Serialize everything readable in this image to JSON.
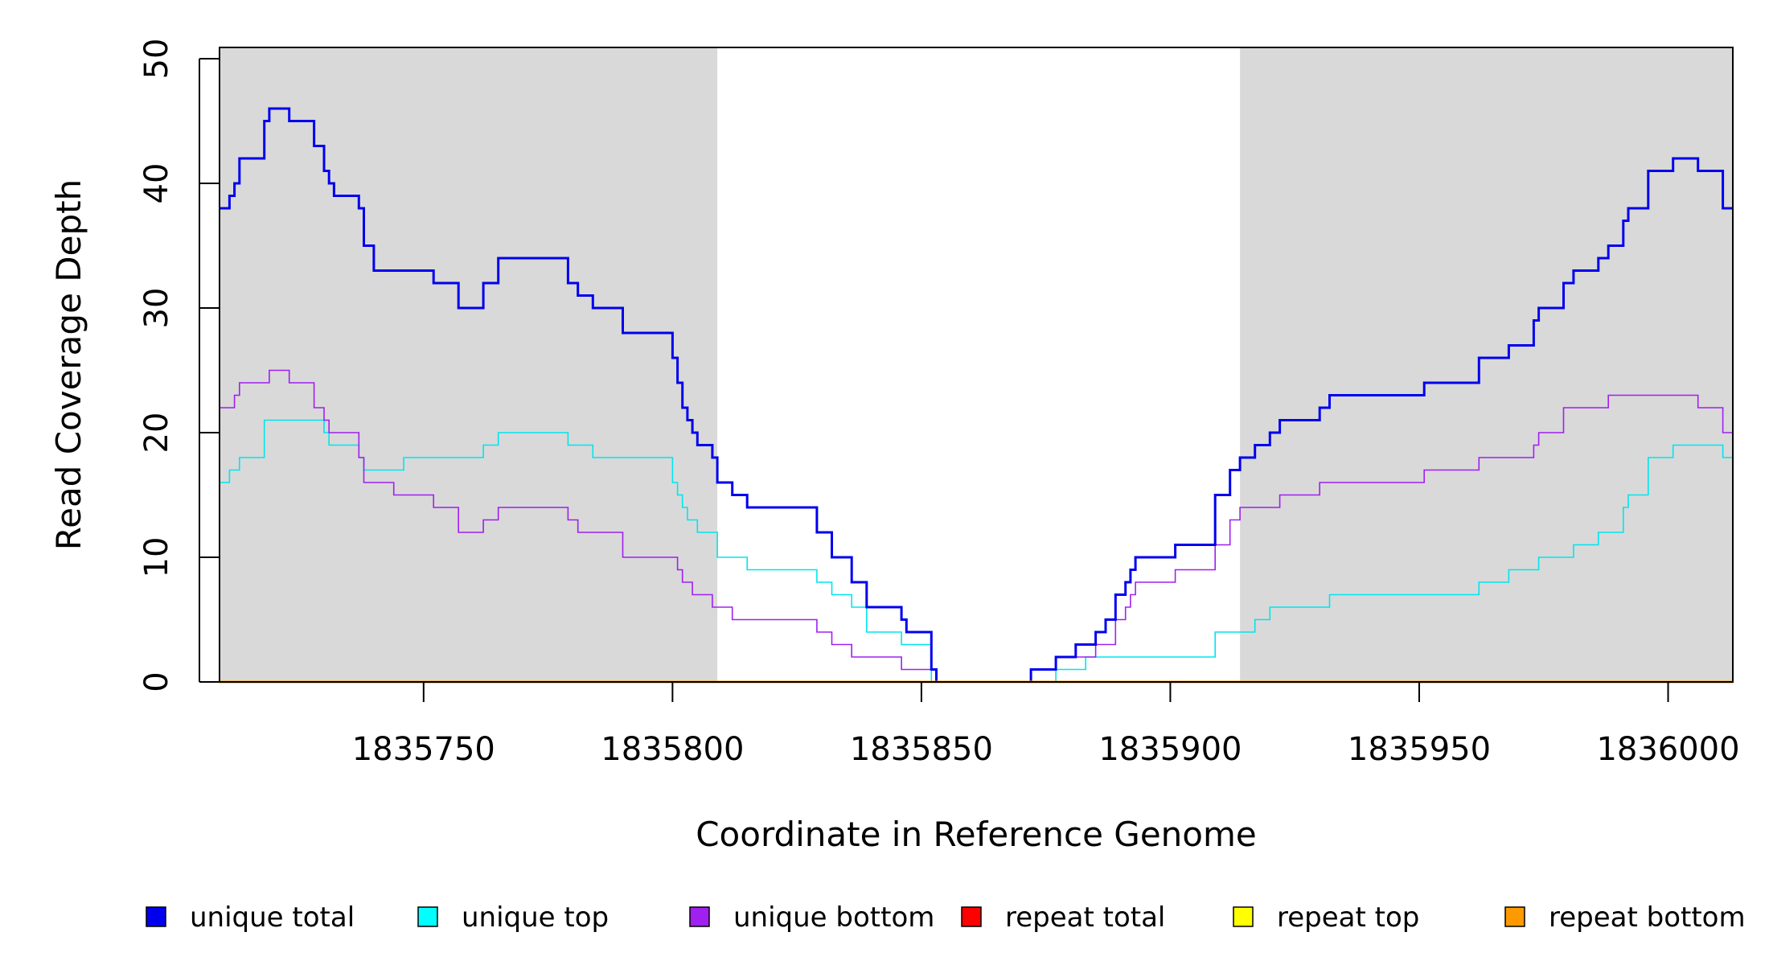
{
  "chart_data": {
    "type": "line",
    "title": "",
    "xlabel": "Coordinate in Reference Genome",
    "ylabel": "Read Coverage Depth",
    "xlim": [
      1835709,
      1836013
    ],
    "ylim": [
      0,
      50
    ],
    "x_ticks": [
      1835750,
      1835800,
      1835850,
      1835900,
      1835950,
      1836000
    ],
    "x_tick_labels": [
      "1835750",
      "1835800",
      "1835850",
      "1835900",
      "1835950",
      "1836000"
    ],
    "y_ticks": [
      0,
      10,
      20,
      30,
      40,
      50
    ],
    "y_tick_labels": [
      "0",
      "10",
      "20",
      "30",
      "40",
      "50"
    ],
    "shaded_regions": [
      {
        "x0": 1835709,
        "x1": 1835809
      },
      {
        "x0": 1835914,
        "x1": 1836013
      }
    ],
    "shade_color": "#d9d9d9",
    "grid": false,
    "legend_position": "bottom",
    "step": true,
    "series": [
      {
        "name": "unique total",
        "color": "#0000ee",
        "legend_color": "#0000ee",
        "stroke": 3,
        "points": [
          [
            1835709,
            38
          ],
          [
            1835711,
            39
          ],
          [
            1835712,
            40
          ],
          [
            1835713,
            42
          ],
          [
            1835718,
            45
          ],
          [
            1835719,
            46
          ],
          [
            1835723,
            45
          ],
          [
            1835728,
            43
          ],
          [
            1835730,
            41
          ],
          [
            1835731,
            40
          ],
          [
            1835732,
            39
          ],
          [
            1835737,
            38
          ],
          [
            1835738,
            35
          ],
          [
            1835740,
            33
          ],
          [
            1835752,
            32
          ],
          [
            1835757,
            30
          ],
          [
            1835762,
            32
          ],
          [
            1835765,
            34
          ],
          [
            1835779,
            32
          ],
          [
            1835781,
            31
          ],
          [
            1835784,
            30
          ],
          [
            1835790,
            28
          ],
          [
            1835800,
            26
          ],
          [
            1835801,
            24
          ],
          [
            1835802,
            22
          ],
          [
            1835803,
            21
          ],
          [
            1835804,
            20
          ],
          [
            1835805,
            19
          ],
          [
            1835808,
            18
          ],
          [
            1835809,
            16
          ],
          [
            1835812,
            15
          ],
          [
            1835815,
            14
          ],
          [
            1835829,
            12
          ],
          [
            1835832,
            10
          ],
          [
            1835836,
            8
          ],
          [
            1835839,
            6
          ],
          [
            1835846,
            5
          ],
          [
            1835847,
            4
          ],
          [
            1835852,
            1
          ],
          [
            1835853,
            0
          ],
          [
            1835872,
            1
          ],
          [
            1835877,
            2
          ],
          [
            1835881,
            3
          ],
          [
            1835885,
            4
          ],
          [
            1835887,
            5
          ],
          [
            1835889,
            7
          ],
          [
            1835891,
            8
          ],
          [
            1835892,
            9
          ],
          [
            1835893,
            10
          ],
          [
            1835901,
            11
          ],
          [
            1835909,
            15
          ],
          [
            1835912,
            17
          ],
          [
            1835914,
            18
          ],
          [
            1835917,
            19
          ],
          [
            1835920,
            20
          ],
          [
            1835922,
            21
          ],
          [
            1835930,
            22
          ],
          [
            1835932,
            23
          ],
          [
            1835951,
            24
          ],
          [
            1835962,
            26
          ],
          [
            1835968,
            27
          ],
          [
            1835973,
            29
          ],
          [
            1835974,
            30
          ],
          [
            1835979,
            32
          ],
          [
            1835981,
            33
          ],
          [
            1835986,
            34
          ],
          [
            1835988,
            35
          ],
          [
            1835991,
            37
          ],
          [
            1835992,
            38
          ],
          [
            1835996,
            41
          ],
          [
            1836001,
            42
          ],
          [
            1836006,
            41
          ],
          [
            1836011,
            38
          ],
          [
            1836013,
            38
          ]
        ]
      },
      {
        "name": "unique top",
        "color": "#00e5ee",
        "legend_color": "#00ffff",
        "stroke": 1.6,
        "points": [
          [
            1835709,
            16
          ],
          [
            1835711,
            17
          ],
          [
            1835713,
            18
          ],
          [
            1835718,
            21
          ],
          [
            1835730,
            20
          ],
          [
            1835731,
            19
          ],
          [
            1835737,
            18
          ],
          [
            1835738,
            17
          ],
          [
            1835746,
            18
          ],
          [
            1835762,
            19
          ],
          [
            1835765,
            20
          ],
          [
            1835779,
            19
          ],
          [
            1835784,
            18
          ],
          [
            1835800,
            16
          ],
          [
            1835801,
            15
          ],
          [
            1835802,
            14
          ],
          [
            1835803,
            13
          ],
          [
            1835805,
            12
          ],
          [
            1835809,
            10
          ],
          [
            1835815,
            9
          ],
          [
            1835829,
            8
          ],
          [
            1835832,
            7
          ],
          [
            1835836,
            6
          ],
          [
            1835839,
            4
          ],
          [
            1835846,
            3
          ],
          [
            1835852,
            0
          ],
          [
            1835877,
            1
          ],
          [
            1835883,
            2
          ],
          [
            1835909,
            4
          ],
          [
            1835917,
            5
          ],
          [
            1835920,
            6
          ],
          [
            1835932,
            7
          ],
          [
            1835962,
            8
          ],
          [
            1835968,
            9
          ],
          [
            1835974,
            10
          ],
          [
            1835981,
            11
          ],
          [
            1835986,
            12
          ],
          [
            1835991,
            14
          ],
          [
            1835992,
            15
          ],
          [
            1835996,
            18
          ],
          [
            1836001,
            19
          ],
          [
            1836011,
            18
          ],
          [
            1836013,
            18
          ]
        ]
      },
      {
        "name": "unique bottom",
        "color": "#a020f0",
        "legend_color": "#a020f0",
        "stroke": 1.6,
        "points": [
          [
            1835709,
            22
          ],
          [
            1835712,
            23
          ],
          [
            1835713,
            24
          ],
          [
            1835719,
            25
          ],
          [
            1835723,
            24
          ],
          [
            1835728,
            22
          ],
          [
            1835730,
            21
          ],
          [
            1835731,
            20
          ],
          [
            1835737,
            18
          ],
          [
            1835738,
            16
          ],
          [
            1835744,
            15
          ],
          [
            1835752,
            14
          ],
          [
            1835757,
            12
          ],
          [
            1835762,
            13
          ],
          [
            1835765,
            14
          ],
          [
            1835779,
            13
          ],
          [
            1835781,
            12
          ],
          [
            1835790,
            10
          ],
          [
            1835801,
            9
          ],
          [
            1835802,
            8
          ],
          [
            1835804,
            7
          ],
          [
            1835808,
            6
          ],
          [
            1835812,
            5
          ],
          [
            1835829,
            4
          ],
          [
            1835832,
            3
          ],
          [
            1835836,
            2
          ],
          [
            1835846,
            1
          ],
          [
            1835853,
            0
          ],
          [
            1835872,
            1
          ],
          [
            1835877,
            2
          ],
          [
            1835885,
            3
          ],
          [
            1835889,
            5
          ],
          [
            1835891,
            6
          ],
          [
            1835892,
            7
          ],
          [
            1835893,
            8
          ],
          [
            1835901,
            9
          ],
          [
            1835909,
            11
          ],
          [
            1835912,
            13
          ],
          [
            1835914,
            14
          ],
          [
            1835922,
            15
          ],
          [
            1835930,
            16
          ],
          [
            1835951,
            17
          ],
          [
            1835962,
            18
          ],
          [
            1835973,
            19
          ],
          [
            1835974,
            20
          ],
          [
            1835979,
            22
          ],
          [
            1835988,
            23
          ],
          [
            1836006,
            22
          ],
          [
            1836011,
            20
          ],
          [
            1836013,
            20
          ]
        ]
      },
      {
        "name": "repeat total",
        "color": "#ff0000",
        "legend_color": "#ff0000",
        "stroke": 2,
        "points": [
          [
            1835709,
            0
          ],
          [
            1836013,
            0
          ]
        ]
      },
      {
        "name": "repeat top",
        "color": "#ffff00",
        "legend_color": "#ffff00",
        "stroke": 2,
        "points": [
          [
            1835709,
            0
          ],
          [
            1836013,
            0
          ]
        ]
      },
      {
        "name": "repeat bottom",
        "color": "#ff9900",
        "legend_color": "#ff9900",
        "stroke": 3,
        "points": [
          [
            1835709,
            0
          ],
          [
            1836013,
            0
          ]
        ]
      }
    ]
  }
}
